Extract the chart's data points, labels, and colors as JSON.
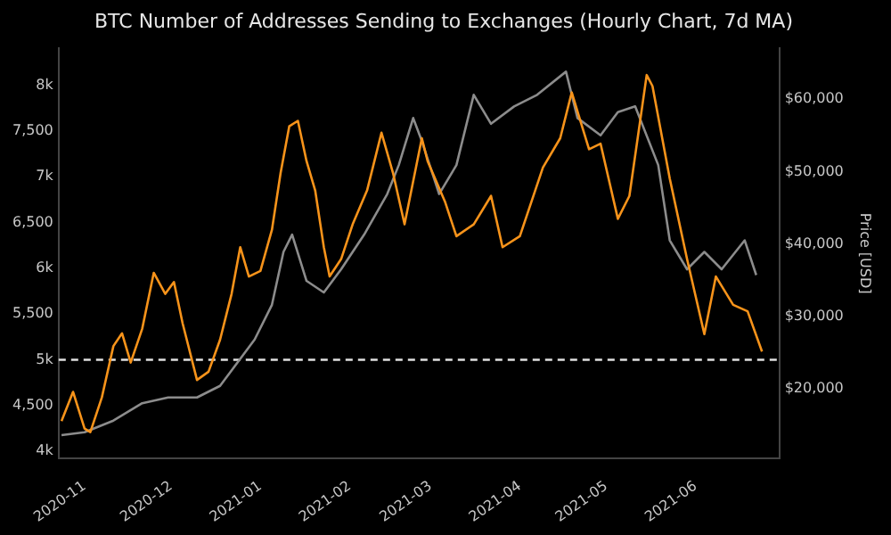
{
  "chart_data": {
    "type": "line",
    "title": "BTC Number of Addresses Sending to Exchanges (Hourly Chart, 7d MA)",
    "y2label": "Price [USD]",
    "xlim": [
      "2020-10-23",
      "2021-06-30"
    ],
    "xticks": [
      "2020-11",
      "2020-12",
      "2021-01",
      "2021-02",
      "2021-03",
      "2021-04",
      "2021-05",
      "2021-06"
    ],
    "ylim": [
      3925,
      8400
    ],
    "yticks": [
      {
        "value": 4000,
        "label": "4k"
      },
      {
        "value": 4500,
        "label": "4,500"
      },
      {
        "value": 5000,
        "label": "5k"
      },
      {
        "value": 5500,
        "label": "5,500"
      },
      {
        "value": 6000,
        "label": "6k"
      },
      {
        "value": 6500,
        "label": "6,500"
      },
      {
        "value": 7000,
        "label": "7k"
      },
      {
        "value": 7500,
        "label": "7,500"
      },
      {
        "value": 8000,
        "label": "8k"
      }
    ],
    "y2lim": [
      10400,
      67000
    ],
    "y2ticks": [
      {
        "value": 20000,
        "label": "$20,000"
      },
      {
        "value": 30000,
        "label": "$30,000"
      },
      {
        "value": 40000,
        "label": "$40,000"
      },
      {
        "value": 50000,
        "label": "$50,000"
      },
      {
        "value": 60000,
        "label": "$60,000"
      }
    ],
    "grid": false,
    "legend": false,
    "marker": "none",
    "line_style": "solid",
    "ref_lines": [
      {
        "axis": "y",
        "value": 5000,
        "label": null,
        "color": "#e0e0e0",
        "line_style": "dashed"
      }
    ],
    "series": [
      {
        "color": "#f7931a",
        "x": [
          "2020-10-24",
          "2020-10-28",
          "2020-11-01",
          "2020-11-03",
          "2020-11-07",
          "2020-11-11",
          "2020-11-14",
          "2020-11-17",
          "2020-11-21",
          "2020-11-25",
          "2020-11-29",
          "2020-12-02",
          "2020-12-05",
          "2020-12-10",
          "2020-12-14",
          "2020-12-18",
          "2020-12-22",
          "2020-12-25",
          "2020-12-28",
          "2021-01-01",
          "2021-01-05",
          "2021-01-08",
          "2021-01-11",
          "2021-01-14",
          "2021-01-17",
          "2021-01-20",
          "2021-01-23",
          "2021-01-25",
          "2021-01-29",
          "2021-02-02",
          "2021-02-07",
          "2021-02-12",
          "2021-02-16",
          "2021-02-20",
          "2021-02-26",
          "2021-02-28",
          "2021-03-06",
          "2021-03-10",
          "2021-03-16",
          "2021-03-22",
          "2021-03-26",
          "2021-04-01",
          "2021-04-09",
          "2021-04-15",
          "2021-04-19",
          "2021-04-22",
          "2021-04-25",
          "2021-04-29",
          "2021-05-05",
          "2021-05-09",
          "2021-05-15",
          "2021-05-17",
          "2021-05-23",
          "2021-05-29",
          "2021-06-04",
          "2021-06-08",
          "2021-06-14",
          "2021-06-19",
          "2021-06-24"
        ],
        "values": [
          4330,
          4650,
          4250,
          4210,
          4590,
          5150,
          5290,
          4970,
          5340,
          5950,
          5720,
          5850,
          5400,
          4780,
          4870,
          5220,
          5720,
          6230,
          5910,
          5970,
          6420,
          7040,
          7550,
          7610,
          7170,
          6850,
          6230,
          5910,
          6100,
          6480,
          6850,
          7480,
          7040,
          6480,
          7420,
          7170,
          6730,
          6350,
          6480,
          6790,
          6230,
          6350,
          7100,
          7420,
          7920,
          7610,
          7300,
          7360,
          6540,
          6790,
          8110,
          7990,
          6980,
          6100,
          5280,
          5910,
          5600,
          5530,
          5090
        ]
      },
      {
        "color": "#8c8c8c",
        "axis": "y2",
        "x": [
          "2020-10-24",
          "2020-11-01",
          "2020-11-11",
          "2020-11-21",
          "2020-11-30",
          "2020-12-10",
          "2020-12-18",
          "2020-12-24",
          "2020-12-30",
          "2021-01-05",
          "2021-01-09",
          "2021-01-12",
          "2021-01-17",
          "2021-01-23",
          "2021-01-29",
          "2021-02-06",
          "2021-02-14",
          "2021-02-18",
          "2021-02-23",
          "2021-02-26",
          "2021-03-04",
          "2021-03-10",
          "2021-03-16",
          "2021-03-22",
          "2021-03-30",
          "2021-04-07",
          "2021-04-17",
          "2021-04-21",
          "2021-04-29",
          "2021-05-05",
          "2021-05-11",
          "2021-05-19",
          "2021-05-23",
          "2021-05-29",
          "2021-06-04",
          "2021-06-10",
          "2021-06-18",
          "2021-06-22"
        ],
        "values": [
          13600,
          14000,
          15600,
          18000,
          18800,
          18800,
          20400,
          23600,
          26800,
          31600,
          38900,
          41300,
          34900,
          33300,
          36500,
          41300,
          46900,
          50900,
          57400,
          54200,
          46900,
          50900,
          60600,
          56600,
          59000,
          60600,
          63800,
          57400,
          55000,
          58200,
          59000,
          50900,
          40500,
          36500,
          38900,
          36500,
          40500,
          35700
        ]
      }
    ]
  }
}
